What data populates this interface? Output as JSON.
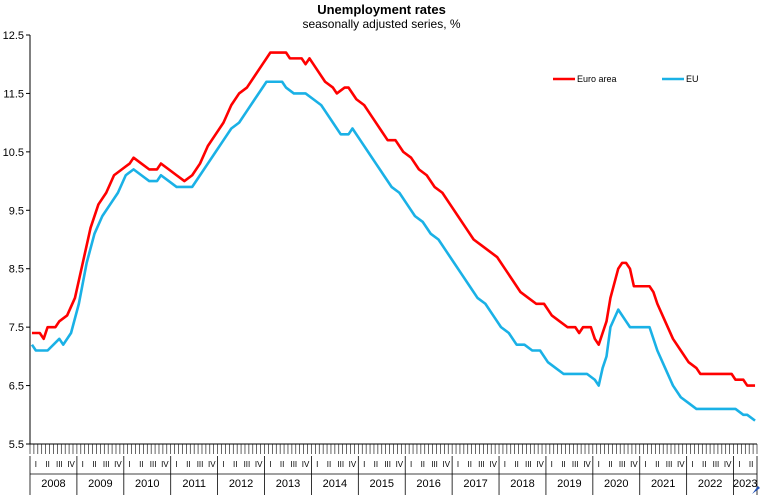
{
  "chart_data": {
    "type": "line",
    "title": "Unemployment rates",
    "subtitle": "seasonally adjusted series, %",
    "ylim": [
      5.5,
      12.5
    ],
    "yticks": [
      "5.5",
      "6.5",
      "7.5",
      "8.5",
      "9.5",
      "10.5",
      "11.5",
      "12.5"
    ],
    "ytick_values": [
      5.5,
      6.5,
      7.5,
      8.5,
      9.5,
      10.5,
      11.5,
      12.5
    ],
    "years": [
      "2008",
      "2009",
      "2010",
      "2011",
      "2012",
      "2013",
      "2014",
      "2015",
      "2016",
      "2017",
      "2018",
      "2019",
      "2020",
      "2021",
      "2022",
      "2023"
    ],
    "quarter_labels": [
      "I",
      "II",
      "III",
      "IV"
    ],
    "x_start": "2008-01",
    "x_end": "2023-06",
    "grid": false,
    "legend_position": "top-right",
    "series": [
      {
        "name": "Euro area",
        "color": "#ff0000",
        "points": [
          [
            "2008-01",
            7.4
          ],
          [
            "2008-03",
            7.4
          ],
          [
            "2008-04",
            7.3
          ],
          [
            "2008-05",
            7.5
          ],
          [
            "2008-07",
            7.5
          ],
          [
            "2008-08",
            7.6
          ],
          [
            "2008-10",
            7.7
          ],
          [
            "2008-12",
            8.0
          ],
          [
            "2009-02",
            8.6
          ],
          [
            "2009-04",
            9.2
          ],
          [
            "2009-06",
            9.6
          ],
          [
            "2009-08",
            9.8
          ],
          [
            "2009-10",
            10.1
          ],
          [
            "2009-12",
            10.2
          ],
          [
            "2010-02",
            10.3
          ],
          [
            "2010-03",
            10.4
          ],
          [
            "2010-05",
            10.3
          ],
          [
            "2010-07",
            10.2
          ],
          [
            "2010-09",
            10.2
          ],
          [
            "2010-10",
            10.3
          ],
          [
            "2010-12",
            10.2
          ],
          [
            "2011-02",
            10.1
          ],
          [
            "2011-04",
            10.0
          ],
          [
            "2011-06",
            10.1
          ],
          [
            "2011-08",
            10.3
          ],
          [
            "2011-10",
            10.6
          ],
          [
            "2011-12",
            10.8
          ],
          [
            "2012-02",
            11.0
          ],
          [
            "2012-04",
            11.3
          ],
          [
            "2012-06",
            11.5
          ],
          [
            "2012-08",
            11.6
          ],
          [
            "2012-10",
            11.8
          ],
          [
            "2012-12",
            12.0
          ],
          [
            "2013-01",
            12.1
          ],
          [
            "2013-02",
            12.2
          ],
          [
            "2013-06",
            12.2
          ],
          [
            "2013-07",
            12.1
          ],
          [
            "2013-10",
            12.1
          ],
          [
            "2013-11",
            12.0
          ],
          [
            "2013-12",
            12.1
          ],
          [
            "2014-01",
            12.0
          ],
          [
            "2014-04",
            11.7
          ],
          [
            "2014-06",
            11.6
          ],
          [
            "2014-07",
            11.5
          ],
          [
            "2014-09",
            11.6
          ],
          [
            "2014-10",
            11.6
          ],
          [
            "2014-12",
            11.4
          ],
          [
            "2015-02",
            11.3
          ],
          [
            "2015-04",
            11.1
          ],
          [
            "2015-06",
            10.9
          ],
          [
            "2015-08",
            10.7
          ],
          [
            "2015-10",
            10.7
          ],
          [
            "2015-12",
            10.5
          ],
          [
            "2016-02",
            10.4
          ],
          [
            "2016-04",
            10.2
          ],
          [
            "2016-06",
            10.1
          ],
          [
            "2016-08",
            9.9
          ],
          [
            "2016-10",
            9.8
          ],
          [
            "2016-12",
            9.6
          ],
          [
            "2017-02",
            9.4
          ],
          [
            "2017-04",
            9.2
          ],
          [
            "2017-06",
            9.0
          ],
          [
            "2017-08",
            8.9
          ],
          [
            "2017-10",
            8.8
          ],
          [
            "2017-12",
            8.7
          ],
          [
            "2018-02",
            8.5
          ],
          [
            "2018-04",
            8.3
          ],
          [
            "2018-06",
            8.1
          ],
          [
            "2018-08",
            8.0
          ],
          [
            "2018-10",
            7.9
          ],
          [
            "2018-12",
            7.9
          ],
          [
            "2019-02",
            7.7
          ],
          [
            "2019-04",
            7.6
          ],
          [
            "2019-06",
            7.5
          ],
          [
            "2019-08",
            7.5
          ],
          [
            "2019-09",
            7.4
          ],
          [
            "2019-10",
            7.5
          ],
          [
            "2019-12",
            7.5
          ],
          [
            "2020-01",
            7.3
          ],
          [
            "2020-02",
            7.2
          ],
          [
            "2020-03",
            7.4
          ],
          [
            "2020-04",
            7.6
          ],
          [
            "2020-05",
            8.0
          ],
          [
            "2020-07",
            8.5
          ],
          [
            "2020-08",
            8.6
          ],
          [
            "2020-09",
            8.6
          ],
          [
            "2020-10",
            8.5
          ],
          [
            "2020-11",
            8.2
          ],
          [
            "2021-01",
            8.2
          ],
          [
            "2021-03",
            8.2
          ],
          [
            "2021-04",
            8.1
          ],
          [
            "2021-05",
            7.9
          ],
          [
            "2021-07",
            7.6
          ],
          [
            "2021-09",
            7.3
          ],
          [
            "2021-11",
            7.1
          ],
          [
            "2022-01",
            6.9
          ],
          [
            "2022-03",
            6.8
          ],
          [
            "2022-04",
            6.7
          ],
          [
            "2022-06",
            6.7
          ],
          [
            "2022-09",
            6.7
          ],
          [
            "2022-12",
            6.7
          ],
          [
            "2023-01",
            6.6
          ],
          [
            "2023-03",
            6.6
          ],
          [
            "2023-04",
            6.5
          ],
          [
            "2023-06",
            6.5
          ]
        ]
      },
      {
        "name": "EU",
        "color": "#1ab1e6",
        "points": [
          [
            "2008-01",
            7.2
          ],
          [
            "2008-02",
            7.1
          ],
          [
            "2008-05",
            7.1
          ],
          [
            "2008-08",
            7.3
          ],
          [
            "2008-09",
            7.2
          ],
          [
            "2008-11",
            7.4
          ],
          [
            "2009-01",
            7.9
          ],
          [
            "2009-03",
            8.6
          ],
          [
            "2009-05",
            9.1
          ],
          [
            "2009-07",
            9.4
          ],
          [
            "2009-09",
            9.6
          ],
          [
            "2009-11",
            9.8
          ],
          [
            "2010-01",
            10.1
          ],
          [
            "2010-03",
            10.2
          ],
          [
            "2010-05",
            10.1
          ],
          [
            "2010-07",
            10.0
          ],
          [
            "2010-09",
            10.0
          ],
          [
            "2010-10",
            10.1
          ],
          [
            "2010-12",
            10.0
          ],
          [
            "2011-02",
            9.9
          ],
          [
            "2011-06",
            9.9
          ],
          [
            "2011-08",
            10.1
          ],
          [
            "2011-10",
            10.3
          ],
          [
            "2011-12",
            10.5
          ],
          [
            "2012-02",
            10.7
          ],
          [
            "2012-04",
            10.9
          ],
          [
            "2012-06",
            11.0
          ],
          [
            "2012-08",
            11.2
          ],
          [
            "2012-10",
            11.4
          ],
          [
            "2012-12",
            11.6
          ],
          [
            "2013-01",
            11.7
          ],
          [
            "2013-05",
            11.7
          ],
          [
            "2013-06",
            11.6
          ],
          [
            "2013-08",
            11.5
          ],
          [
            "2013-11",
            11.5
          ],
          [
            "2014-01",
            11.4
          ],
          [
            "2014-03",
            11.3
          ],
          [
            "2014-04",
            11.2
          ],
          [
            "2014-06",
            11.0
          ],
          [
            "2014-08",
            10.8
          ],
          [
            "2014-10",
            10.8
          ],
          [
            "2014-11",
            10.9
          ],
          [
            "2015-01",
            10.7
          ],
          [
            "2015-03",
            10.5
          ],
          [
            "2015-05",
            10.3
          ],
          [
            "2015-07",
            10.1
          ],
          [
            "2015-09",
            9.9
          ],
          [
            "2015-11",
            9.8
          ],
          [
            "2016-01",
            9.6
          ],
          [
            "2016-03",
            9.4
          ],
          [
            "2016-05",
            9.3
          ],
          [
            "2016-07",
            9.1
          ],
          [
            "2016-09",
            9.0
          ],
          [
            "2016-11",
            8.8
          ],
          [
            "2017-01",
            8.6
          ],
          [
            "2017-03",
            8.4
          ],
          [
            "2017-05",
            8.2
          ],
          [
            "2017-07",
            8.0
          ],
          [
            "2017-09",
            7.9
          ],
          [
            "2017-11",
            7.7
          ],
          [
            "2018-01",
            7.5
          ],
          [
            "2018-03",
            7.4
          ],
          [
            "2018-05",
            7.2
          ],
          [
            "2018-07",
            7.2
          ],
          [
            "2018-09",
            7.1
          ],
          [
            "2018-11",
            7.1
          ],
          [
            "2019-01",
            6.9
          ],
          [
            "2019-03",
            6.8
          ],
          [
            "2019-05",
            6.7
          ],
          [
            "2019-07",
            6.7
          ],
          [
            "2019-09",
            6.7
          ],
          [
            "2019-11",
            6.7
          ],
          [
            "2020-01",
            6.6
          ],
          [
            "2020-02",
            6.5
          ],
          [
            "2020-03",
            6.8
          ],
          [
            "2020-04",
            7.0
          ],
          [
            "2020-05",
            7.5
          ],
          [
            "2020-07",
            7.8
          ],
          [
            "2020-09",
            7.6
          ],
          [
            "2020-10",
            7.5
          ],
          [
            "2021-01",
            7.5
          ],
          [
            "2021-03",
            7.5
          ],
          [
            "2021-05",
            7.1
          ],
          [
            "2021-07",
            6.8
          ],
          [
            "2021-09",
            6.5
          ],
          [
            "2021-11",
            6.3
          ],
          [
            "2022-01",
            6.2
          ],
          [
            "2022-03",
            6.1
          ],
          [
            "2022-06",
            6.1
          ],
          [
            "2022-09",
            6.1
          ],
          [
            "2022-12",
            6.1
          ],
          [
            "2023-01",
            6.1
          ],
          [
            "2023-03",
            6.0
          ],
          [
            "2023-04",
            6.0
          ],
          [
            "2023-06",
            5.9
          ]
        ]
      }
    ]
  }
}
